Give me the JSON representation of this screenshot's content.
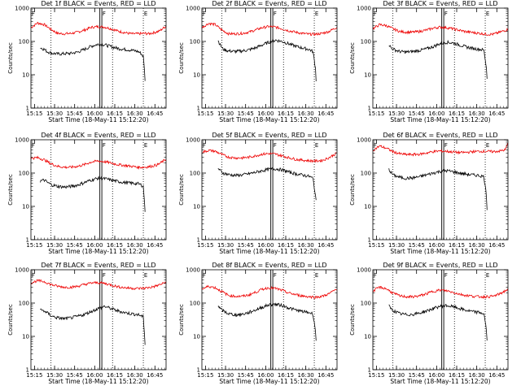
{
  "colors": {
    "events": "#000000",
    "lld": "#ee0000",
    "axes": "#000000",
    "background": "#ffffff"
  },
  "chart_data": {
    "type": "line",
    "ylabel": "Counts/sec",
    "xlabel": "Start Time (18-May-11 15:12:20)",
    "yscale": "log",
    "ylim": [
      1,
      1000
    ],
    "ytick_labels": [
      "1000",
      "100",
      "10",
      "1"
    ],
    "x_minutes_range": [
      0,
      101
    ],
    "xtick_labels": [
      "15:15",
      "15:30",
      "15:45",
      "16:00",
      "16:15",
      "16:30",
      "16:45"
    ],
    "series_legend": [
      "BLACK = Events",
      "RED = LLD"
    ],
    "dotted_markers_min": [
      15,
      61,
      84
    ],
    "solid_markers_min": [
      51.5,
      53
    ],
    "marker_letters": [
      "F",
      "E"
    ],
    "panels": [
      {
        "title": "Det 1f BLACK = Events, RED = LLD",
        "lld": {
          "x": [
            0,
            5,
            10,
            15,
            20,
            25,
            30,
            35,
            40,
            45,
            50,
            55,
            60,
            65,
            70,
            75,
            80,
            85,
            88,
            92,
            96,
            101
          ],
          "y": [
            260,
            360,
            320,
            230,
            175,
            170,
            175,
            190,
            220,
            265,
            280,
            270,
            240,
            205,
            185,
            170,
            170,
            175,
            170,
            185,
            205,
            290
          ]
        },
        "events": {
          "x": [
            7,
            10,
            12,
            15,
            20,
            25,
            30,
            35,
            40,
            45,
            50,
            55,
            60,
            65,
            70,
            75,
            80,
            82,
            84,
            85,
            85.5
          ],
          "y": [
            65,
            58,
            50,
            45,
            42,
            43,
            44,
            48,
            58,
            72,
            82,
            80,
            70,
            62,
            58,
            55,
            50,
            45,
            35,
            12,
            4
          ]
        }
      },
      {
        "title": "Det 2f BLACK = Events, RED = LLD",
        "lld": {
          "x": [
            0,
            5,
            10,
            15,
            20,
            25,
            30,
            35,
            40,
            45,
            50,
            55,
            60,
            65,
            70,
            75,
            80,
            85,
            90,
            95,
            101
          ],
          "y": [
            260,
            350,
            320,
            220,
            170,
            170,
            175,
            190,
            220,
            260,
            280,
            270,
            240,
            210,
            190,
            175,
            165,
            165,
            175,
            200,
            270
          ]
        },
        "events": {
          "x": [
            12,
            14,
            16,
            20,
            25,
            30,
            35,
            40,
            45,
            50,
            55,
            60,
            65,
            70,
            75,
            80,
            83,
            85,
            85.5
          ],
          "y": [
            110,
            75,
            58,
            52,
            50,
            52,
            56,
            64,
            78,
            95,
            110,
            100,
            85,
            72,
            64,
            58,
            50,
            15,
            5
          ]
        }
      },
      {
        "title": "Det 3f BLACK = Events, RED = LLD",
        "lld": {
          "x": [
            0,
            5,
            10,
            15,
            20,
            25,
            30,
            35,
            40,
            45,
            50,
            55,
            60,
            65,
            70,
            75,
            80,
            85,
            90,
            95,
            101
          ],
          "y": [
            240,
            320,
            300,
            240,
            200,
            190,
            190,
            200,
            220,
            250,
            270,
            260,
            240,
            215,
            195,
            185,
            175,
            165,
            165,
            190,
            230
          ]
        },
        "events": {
          "x": [
            12,
            14,
            17,
            20,
            25,
            30,
            35,
            40,
            45,
            50,
            55,
            60,
            65,
            70,
            75,
            80,
            83,
            85,
            85.5
          ],
          "y": [
            80,
            62,
            55,
            50,
            48,
            50,
            54,
            60,
            70,
            85,
            95,
            90,
            78,
            68,
            62,
            58,
            55,
            15,
            6
          ]
        }
      },
      {
        "title": "Det 4f BLACK = Events, RED = LLD",
        "lld": {
          "x": [
            0,
            5,
            10,
            15,
            20,
            25,
            30,
            35,
            40,
            45,
            50,
            55,
            60,
            65,
            70,
            75,
            80,
            85,
            90,
            95,
            101
          ],
          "y": [
            280,
            290,
            250,
            190,
            160,
            150,
            150,
            160,
            180,
            215,
            230,
            220,
            200,
            180,
            170,
            160,
            150,
            150,
            160,
            180,
            260
          ]
        },
        "events": {
          "x": [
            7,
            10,
            13,
            16,
            20,
            25,
            30,
            35,
            40,
            45,
            50,
            55,
            60,
            65,
            70,
            75,
            80,
            82,
            84,
            85,
            85.5
          ],
          "y": [
            58,
            62,
            50,
            44,
            40,
            38,
            40,
            44,
            52,
            62,
            70,
            68,
            62,
            56,
            52,
            50,
            48,
            45,
            40,
            12,
            4
          ]
        }
      },
      {
        "title": "Det 5f BLACK = Events, RED = LLD",
        "lld": {
          "x": [
            0,
            5,
            10,
            15,
            20,
            25,
            30,
            35,
            40,
            45,
            50,
            55,
            60,
            65,
            70,
            75,
            80,
            85,
            90,
            95,
            101
          ],
          "y": [
            420,
            480,
            450,
            360,
            300,
            285,
            285,
            300,
            330,
            370,
            385,
            370,
            330,
            290,
            260,
            245,
            235,
            230,
            240,
            290,
            400
          ]
        },
        "events": {
          "x": [
            12,
            14,
            16,
            20,
            25,
            30,
            35,
            40,
            45,
            50,
            55,
            60,
            65,
            70,
            75,
            80,
            83,
            85,
            85.5
          ],
          "y": [
            140,
            115,
            100,
            90,
            85,
            88,
            95,
            105,
            118,
            130,
            135,
            125,
            108,
            95,
            88,
            80,
            70,
            20,
            12
          ]
        }
      },
      {
        "title": "Det 6f BLACK = Events, RED = LLD",
        "lld": {
          "x": [
            0,
            5,
            10,
            15,
            20,
            25,
            30,
            35,
            40,
            45,
            50,
            55,
            60,
            65,
            70,
            75,
            80,
            85,
            90,
            95,
            99,
            101
          ],
          "y": [
            480,
            650,
            560,
            440,
            380,
            360,
            360,
            370,
            400,
            440,
            460,
            450,
            430,
            410,
            420,
            440,
            450,
            450,
            440,
            460,
            500,
            800
          ]
        },
        "events": {
          "x": [
            12,
            14,
            16,
            20,
            25,
            30,
            35,
            40,
            45,
            50,
            55,
            60,
            65,
            70,
            75,
            80,
            83,
            85,
            85.5
          ],
          "y": [
            130,
            98,
            85,
            75,
            70,
            72,
            78,
            88,
            100,
            112,
            118,
            110,
            100,
            92,
            88,
            84,
            78,
            20,
            6
          ]
        }
      },
      {
        "title": "Det 7f BLACK = Events, RED = LLD",
        "lld": {
          "x": [
            0,
            5,
            10,
            15,
            20,
            25,
            30,
            35,
            40,
            45,
            50,
            55,
            60,
            65,
            70,
            75,
            80,
            85,
            90,
            95,
            101
          ],
          "y": [
            400,
            470,
            440,
            360,
            320,
            300,
            300,
            320,
            360,
            400,
            410,
            390,
            350,
            310,
            290,
            280,
            275,
            280,
            300,
            340,
            420
          ]
        },
        "events": {
          "x": [
            7,
            10,
            13,
            16,
            20,
            25,
            30,
            35,
            40,
            45,
            50,
            55,
            60,
            65,
            70,
            75,
            80,
            82,
            84,
            85,
            85.5
          ],
          "y": [
            62,
            58,
            48,
            40,
            36,
            34,
            36,
            40,
            46,
            56,
            68,
            80,
            68,
            58,
            52,
            48,
            45,
            42,
            38,
            10,
            4
          ]
        }
      },
      {
        "title": "Det 8f BLACK = Events, RED = LLD",
        "lld": {
          "x": [
            0,
            5,
            10,
            15,
            20,
            25,
            30,
            35,
            40,
            45,
            50,
            55,
            60,
            65,
            70,
            75,
            80,
            85,
            90,
            95,
            101
          ],
          "y": [
            260,
            320,
            290,
            220,
            170,
            160,
            160,
            175,
            210,
            260,
            290,
            275,
            240,
            200,
            180,
            165,
            155,
            150,
            160,
            190,
            270
          ]
        },
        "events": {
          "x": [
            12,
            14,
            17,
            20,
            25,
            30,
            35,
            40,
            45,
            50,
            55,
            60,
            65,
            70,
            75,
            80,
            83,
            85,
            85.5
          ],
          "y": [
            85,
            65,
            55,
            48,
            44,
            46,
            52,
            62,
            75,
            88,
            92,
            85,
            72,
            62,
            56,
            52,
            48,
            14,
            5
          ]
        }
      },
      {
        "title": "Det 9f BLACK = Events, RED = LLD",
        "lld": {
          "x": [
            0,
            5,
            10,
            15,
            20,
            25,
            30,
            35,
            40,
            45,
            50,
            55,
            60,
            65,
            70,
            75,
            80,
            85,
            90,
            95,
            101
          ],
          "y": [
            230,
            300,
            270,
            200,
            165,
            155,
            155,
            165,
            190,
            225,
            245,
            235,
            210,
            185,
            170,
            160,
            155,
            155,
            160,
            190,
            260
          ]
        },
        "events": {
          "x": [
            12,
            14,
            17,
            20,
            25,
            30,
            35,
            40,
            45,
            50,
            55,
            60,
            65,
            70,
            75,
            80,
            83,
            85,
            85.5
          ],
          "y": [
            82,
            64,
            55,
            48,
            45,
            46,
            50,
            58,
            68,
            80,
            84,
            78,
            68,
            60,
            55,
            52,
            48,
            15,
            5
          ]
        }
      }
    ]
  }
}
